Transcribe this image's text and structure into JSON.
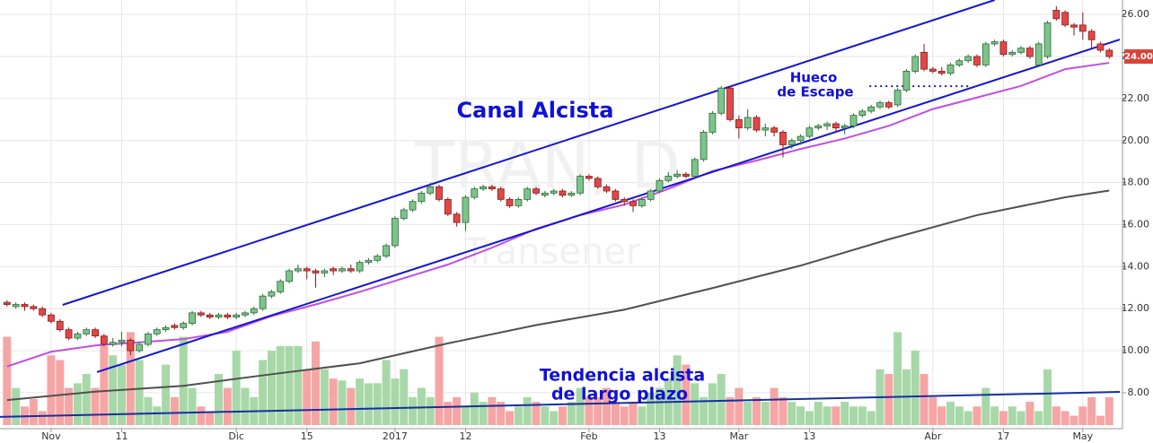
{
  "chart_data": {
    "type": "candlestick",
    "ohlc": [
      [
        12.3,
        12.4,
        12.1,
        12.2
      ],
      [
        12.1,
        12.3,
        12.0,
        12.2
      ],
      [
        12.2,
        12.3,
        11.9,
        12.1
      ],
      [
        12.1,
        12.2,
        11.9,
        12.0
      ],
      [
        12.0,
        12.1,
        11.6,
        11.7
      ],
      [
        11.7,
        11.8,
        11.3,
        11.4
      ],
      [
        11.4,
        11.5,
        10.9,
        11.0
      ],
      [
        11.0,
        11.1,
        10.5,
        10.6
      ],
      [
        10.6,
        10.9,
        10.5,
        10.8
      ],
      [
        10.8,
        11.1,
        10.7,
        11.0
      ],
      [
        11.0,
        11.1,
        10.6,
        10.7
      ],
      [
        10.7,
        10.8,
        10.2,
        10.3
      ],
      [
        10.3,
        10.6,
        10.2,
        10.4
      ],
      [
        10.4,
        10.9,
        10.2,
        10.5
      ],
      [
        10.5,
        10.6,
        9.8,
        10.0
      ],
      [
        10.0,
        10.4,
        9.9,
        10.3
      ],
      [
        10.3,
        10.9,
        10.2,
        10.8
      ],
      [
        10.8,
        11.1,
        10.7,
        11.0
      ],
      [
        11.0,
        11.2,
        10.9,
        11.1
      ],
      [
        11.2,
        11.3,
        11.0,
        11.1
      ],
      [
        11.1,
        11.4,
        11.0,
        11.3
      ],
      [
        11.3,
        11.9,
        11.2,
        11.8
      ],
      [
        11.8,
        11.9,
        11.6,
        11.7
      ],
      [
        11.7,
        11.8,
        11.5,
        11.6
      ],
      [
        11.6,
        11.8,
        11.5,
        11.7
      ],
      [
        11.7,
        11.8,
        11.5,
        11.6
      ],
      [
        11.6,
        11.8,
        11.5,
        11.7
      ],
      [
        11.7,
        11.9,
        11.6,
        11.8
      ],
      [
        11.8,
        12.1,
        11.7,
        12.0
      ],
      [
        12.0,
        12.7,
        11.9,
        12.6
      ],
      [
        12.6,
        12.9,
        12.5,
        12.8
      ],
      [
        12.8,
        13.4,
        12.7,
        13.3
      ],
      [
        13.3,
        13.9,
        13.2,
        13.8
      ],
      [
        13.8,
        14.1,
        13.7,
        13.9
      ],
      [
        13.9,
        14.0,
        13.4,
        13.8
      ],
      [
        13.8,
        13.9,
        13.0,
        13.7
      ],
      [
        13.7,
        13.9,
        13.5,
        13.8
      ],
      [
        13.9,
        14.0,
        13.6,
        13.8
      ],
      [
        13.8,
        14.0,
        13.7,
        13.9
      ],
      [
        13.9,
        14.1,
        13.7,
        13.8
      ],
      [
        13.8,
        14.3,
        13.7,
        14.2
      ],
      [
        14.2,
        14.4,
        14.1,
        14.3
      ],
      [
        14.3,
        14.6,
        14.2,
        14.5
      ],
      [
        14.5,
        15.1,
        14.4,
        15.0
      ],
      [
        15.0,
        16.4,
        14.9,
        16.3
      ],
      [
        16.3,
        16.8,
        16.2,
        16.7
      ],
      [
        16.7,
        17.2,
        16.6,
        17.1
      ],
      [
        17.1,
        17.6,
        17.0,
        17.5
      ],
      [
        17.5,
        18.0,
        17.4,
        17.8
      ],
      [
        17.8,
        17.9,
        17.1,
        17.2
      ],
      [
        17.2,
        17.3,
        16.4,
        16.5
      ],
      [
        16.5,
        16.6,
        15.9,
        16.1
      ],
      [
        16.1,
        17.4,
        15.7,
        17.3
      ],
      [
        17.3,
        17.8,
        17.2,
        17.7
      ],
      [
        17.7,
        17.9,
        17.6,
        17.8
      ],
      [
        17.8,
        17.9,
        17.6,
        17.7
      ],
      [
        17.7,
        17.8,
        17.1,
        17.2
      ],
      [
        17.2,
        17.3,
        16.8,
        16.9
      ],
      [
        16.9,
        17.3,
        16.8,
        17.2
      ],
      [
        17.2,
        17.8,
        17.1,
        17.7
      ],
      [
        17.7,
        17.8,
        17.4,
        17.5
      ],
      [
        17.4,
        17.6,
        17.3,
        17.5
      ],
      [
        17.5,
        17.7,
        17.4,
        17.6
      ],
      [
        17.6,
        17.7,
        17.3,
        17.4
      ],
      [
        17.4,
        17.6,
        17.3,
        17.5
      ],
      [
        17.5,
        18.4,
        17.4,
        18.3
      ],
      [
        18.3,
        18.4,
        18.1,
        18.2
      ],
      [
        18.2,
        18.3,
        17.7,
        17.8
      ],
      [
        17.8,
        17.9,
        17.5,
        17.6
      ],
      [
        17.6,
        17.7,
        17.1,
        17.2
      ],
      [
        17.2,
        17.3,
        16.9,
        17.1
      ],
      [
        17.1,
        17.2,
        16.6,
        16.9
      ],
      [
        16.9,
        17.3,
        16.8,
        17.2
      ],
      [
        17.2,
        17.7,
        17.1,
        17.6
      ],
      [
        17.6,
        18.2,
        17.5,
        18.1
      ],
      [
        18.1,
        18.5,
        18.0,
        18.3
      ],
      [
        18.3,
        18.6,
        18.2,
        18.4
      ],
      [
        18.4,
        18.5,
        18.2,
        18.3
      ],
      [
        18.3,
        19.2,
        18.2,
        19.1
      ],
      [
        19.1,
        20.5,
        19.0,
        20.4
      ],
      [
        20.4,
        21.4,
        20.3,
        21.3
      ],
      [
        21.3,
        22.6,
        21.2,
        22.5
      ],
      [
        22.5,
        22.6,
        20.9,
        21.0
      ],
      [
        21.0,
        21.2,
        20.1,
        20.6
      ],
      [
        20.6,
        21.5,
        20.5,
        21.1
      ],
      [
        21.1,
        21.2,
        20.4,
        20.5
      ],
      [
        20.5,
        20.8,
        20.2,
        20.6
      ],
      [
        20.6,
        20.7,
        20.2,
        20.4
      ],
      [
        20.4,
        20.5,
        19.2,
        19.8
      ],
      [
        19.8,
        20.1,
        19.6,
        20.0
      ],
      [
        20.0,
        20.3,
        19.8,
        20.2
      ],
      [
        20.2,
        20.7,
        20.1,
        20.6
      ],
      [
        20.6,
        20.8,
        20.5,
        20.7
      ],
      [
        20.7,
        20.9,
        20.5,
        20.8
      ],
      [
        20.8,
        20.9,
        20.4,
        20.6
      ],
      [
        20.6,
        20.8,
        20.3,
        20.7
      ],
      [
        20.7,
        21.3,
        20.6,
        21.2
      ],
      [
        21.2,
        21.5,
        21.1,
        21.4
      ],
      [
        21.4,
        21.7,
        21.3,
        21.6
      ],
      [
        21.6,
        21.9,
        21.5,
        21.8
      ],
      [
        21.8,
        21.9,
        21.5,
        21.6
      ],
      [
        21.7,
        22.5,
        21.6,
        22.4
      ],
      [
        22.4,
        23.4,
        22.3,
        23.3
      ],
      [
        23.3,
        24.1,
        23.2,
        24.0
      ],
      [
        24.2,
        24.6,
        23.3,
        23.4
      ],
      [
        23.4,
        23.5,
        23.2,
        23.3
      ],
      [
        23.3,
        23.5,
        23.1,
        23.2
      ],
      [
        23.2,
        23.7,
        23.1,
        23.6
      ],
      [
        23.6,
        23.9,
        23.5,
        23.8
      ],
      [
        23.8,
        24.1,
        23.7,
        24.0
      ],
      [
        24.0,
        24.1,
        23.5,
        23.6
      ],
      [
        23.6,
        24.7,
        23.5,
        24.6
      ],
      [
        24.6,
        24.8,
        24.5,
        24.7
      ],
      [
        24.7,
        24.8,
        24.0,
        24.1
      ],
      [
        24.1,
        24.3,
        24.0,
        24.2
      ],
      [
        24.2,
        24.5,
        24.1,
        24.4
      ],
      [
        24.4,
        24.5,
        23.9,
        24.0
      ],
      [
        23.6,
        24.7,
        23.5,
        24.6
      ],
      [
        24.0,
        25.7,
        23.9,
        25.6
      ],
      [
        26.2,
        26.4,
        25.7,
        25.8
      ],
      [
        26.1,
        26.2,
        25.4,
        25.5
      ],
      [
        25.5,
        25.6,
        25.0,
        25.4
      ],
      [
        25.5,
        26.1,
        24.8,
        25.2
      ],
      [
        25.2,
        25.3,
        24.4,
        24.8
      ],
      [
        24.6,
        24.7,
        24.2,
        24.3
      ],
      [
        24.3,
        24.4,
        23.9,
        24.0
      ]
    ],
    "volume": [
      95,
      40,
      20,
      28,
      15,
      75,
      70,
      40,
      45,
      55,
      40,
      85,
      75,
      65,
      100,
      70,
      30,
      20,
      65,
      30,
      95,
      40,
      20,
      15,
      55,
      40,
      80,
      40,
      30,
      70,
      80,
      85,
      85,
      85,
      60,
      90,
      60,
      50,
      48,
      40,
      50,
      45,
      45,
      70,
      50,
      60,
      30,
      40,
      30,
      95,
      25,
      30,
      20,
      35,
      25,
      30,
      25,
      15,
      20,
      30,
      25,
      20,
      15,
      20,
      25,
      40,
      30,
      30,
      40,
      25,
      20,
      25,
      20,
      35,
      40,
      50,
      75,
      65,
      45,
      30,
      45,
      55,
      30,
      40,
      25,
      30,
      25,
      40,
      30,
      25,
      20,
      15,
      25,
      20,
      20,
      25,
      20,
      20,
      15,
      60,
      55,
      100,
      60,
      80,
      55,
      30,
      20,
      25,
      20,
      15,
      20,
      40,
      20,
      15,
      20,
      15,
      25,
      15,
      60,
      20,
      15,
      10,
      20,
      30,
      10,
      30
    ],
    "volume_ylim": [
      0,
      110
    ],
    "up_color": "#7cc48a",
    "up_edge": "#2d6a38",
    "down_color": "#e04848",
    "down_edge": "#8a1a1a",
    "volume_up_color": "#a8d8a8",
    "volume_down_color": "#f6a5a5",
    "xlim": [
      -0.8,
      126.5
    ],
    "ylim": [
      6.29,
      26.69
    ],
    "yticks": [
      {
        "value": 8,
        "label": "8.00"
      },
      {
        "value": 10,
        "label": "10.00"
      },
      {
        "value": 12,
        "label": "12.00"
      },
      {
        "value": 14,
        "label": "14.00"
      },
      {
        "value": 16,
        "label": "16.00"
      },
      {
        "value": 18,
        "label": "18.00"
      },
      {
        "value": 20,
        "label": "20.00"
      },
      {
        "value": 22,
        "label": "22.00"
      },
      {
        "value": 24,
        "label": "24.00"
      },
      {
        "value": 26,
        "label": "26.00"
      }
    ],
    "xticks": [
      {
        "value": 5,
        "label": "Nov"
      },
      {
        "value": 13,
        "label": "11"
      },
      {
        "value": 26,
        "label": "Dic"
      },
      {
        "value": 34,
        "label": "15"
      },
      {
        "value": 44,
        "label": "2017"
      },
      {
        "value": 52,
        "label": "12"
      },
      {
        "value": 66,
        "label": "Feb"
      },
      {
        "value": 74,
        "label": "13"
      },
      {
        "value": 83,
        "label": "Mar"
      },
      {
        "value": 91,
        "label": "13"
      },
      {
        "value": 105,
        "label": "Abr"
      },
      {
        "value": 113,
        "label": "17"
      },
      {
        "value": 122,
        "label": "May"
      }
    ],
    "grid": true,
    "moving_averages": [
      {
        "color": "#c050e0",
        "x": [
          0,
          5,
          10,
          15,
          20,
          25,
          30,
          35,
          40,
          45,
          50,
          55,
          60,
          65,
          70,
          75,
          80,
          85,
          90,
          95,
          100,
          105,
          110,
          115,
          120,
          125
        ],
        "values": [
          9.25,
          9.95,
          10.25,
          10.4,
          10.55,
          10.9,
          11.65,
          12.2,
          12.8,
          13.45,
          14.1,
          14.9,
          15.8,
          16.45,
          16.95,
          17.7,
          18.55,
          19.05,
          19.6,
          20.1,
          20.7,
          21.5,
          22.05,
          22.6,
          23.4,
          23.7
        ]
      },
      {
        "color": "#505050",
        "x": [
          0,
          10,
          20,
          30,
          40,
          50,
          60,
          70,
          80,
          90,
          100,
          110,
          120,
          125
        ],
        "values": [
          7.65,
          8.05,
          8.33,
          8.88,
          9.4,
          10.35,
          11.22,
          11.95,
          12.98,
          14.05,
          15.3,
          16.45,
          17.3,
          17.62
        ]
      }
    ],
    "trendlines": [
      {
        "color": "#1515d0",
        "style": "solid",
        "x": [
          6.3,
          112.0
        ],
        "values": [
          12.18,
          26.69
        ]
      },
      {
        "color": "#1515d0",
        "style": "solid",
        "x": [
          10.2,
          126.2
        ],
        "values": [
          8.98,
          24.81
        ]
      },
      {
        "color": "#1515d0",
        "style": "dotted",
        "x": [
          97.8,
          109.4
        ],
        "values": [
          22.59,
          22.59
        ]
      },
      {
        "color": "#1530a0",
        "style": "solid",
        "x": [
          -0.8,
          126.2
        ],
        "values": [
          6.85,
          8.04
        ]
      }
    ],
    "annotations": [
      "Canal Alcista",
      "Hueco",
      "de Escape",
      "Tendencia alcista",
      "de largo plazo"
    ],
    "watermark": [
      "TRAN, D",
      "Transener"
    ],
    "last_price": {
      "value": 24,
      "label": "24.00",
      "color": "#d9443a"
    }
  }
}
